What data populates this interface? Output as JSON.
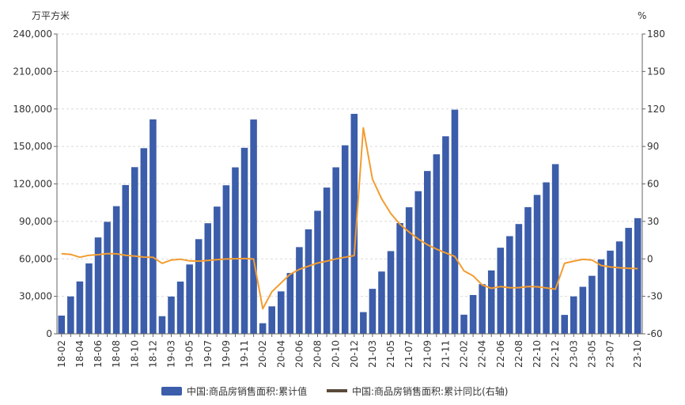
{
  "chart_data": {
    "type": "bar",
    "left_unit": "万平方米",
    "right_unit": "%",
    "ylim_left": [
      0,
      240000
    ],
    "ylim_right": [
      -60,
      180
    ],
    "left_ticks": [
      "0",
      "30,000",
      "60,000",
      "90,000",
      "120,000",
      "150,000",
      "180,000",
      "210,000",
      "240,000"
    ],
    "right_ticks": [
      "-60",
      "-30",
      "0",
      "30",
      "60",
      "90",
      "120",
      "150",
      "180"
    ],
    "grid": true,
    "legend_position": "bottom",
    "categories": [
      "18-02",
      "18-03",
      "18-04",
      "18-05",
      "18-06",
      "18-07",
      "18-08",
      "18-09",
      "18-10",
      "18-11",
      "18-12",
      "19-02",
      "19-03",
      "19-04",
      "19-05",
      "19-06",
      "19-07",
      "19-08",
      "19-09",
      "19-10",
      "19-11",
      "19-12",
      "20-02",
      "20-03",
      "20-04",
      "20-05",
      "20-06",
      "20-07",
      "20-08",
      "20-09",
      "20-10",
      "20-11",
      "20-12",
      "21-02",
      "21-03",
      "21-04",
      "21-05",
      "21-06",
      "21-07",
      "21-08",
      "21-09",
      "21-10",
      "21-11",
      "21-12",
      "22-02",
      "22-03",
      "22-04",
      "22-05",
      "22-06",
      "22-07",
      "22-08",
      "22-09",
      "22-10",
      "22-11",
      "22-12",
      "23-02",
      "23-03",
      "23-04",
      "23-05",
      "23-06",
      "23-07",
      "23-08",
      "23-09",
      "23-10"
    ],
    "x_tick_labels": [
      "18-02",
      "18-04",
      "18-06",
      "18-08",
      "18-10",
      "18-12",
      "19-03",
      "19-05",
      "19-07",
      "19-09",
      "19-11",
      "20-02",
      "20-04",
      "20-06",
      "20-08",
      "20-10",
      "20-12",
      "21-03",
      "21-05",
      "21-07",
      "21-09",
      "21-11",
      "22-02",
      "22-04",
      "22-06",
      "22-08",
      "22-10",
      "22-12",
      "23-03",
      "23-05",
      "23-07",
      "23-10"
    ],
    "series": [
      {
        "name": "中国:商品房销售面积:累计值",
        "type": "bar",
        "axis": "left",
        "color": "#3b5daa",
        "values": [
          14577,
          29904,
          41924,
          56340,
          77143,
          89631,
          102185,
          119099,
          133433,
          148604,
          171654,
          14103,
          29829,
          41802,
          55518,
          75786,
          88531,
          101849,
          118909,
          133251,
          148905,
          171558,
          8475,
          21978,
          33973,
          48703,
          69404,
          83641,
          98486,
          117073,
          133294,
          150919,
          176086,
          17363,
          36007,
          49863,
          66203,
          88635,
          101298,
          114193,
          130332,
          143698,
          158125,
          179433,
          15303,
          31046,
          39768,
          50738,
          68923,
          78178,
          87890,
          101422,
          111179,
          121250,
          135837,
          15133,
          29946,
          37636,
          46440,
          59515,
          66563,
          73949,
          84806,
          92579
        ]
      },
      {
        "name": "中国:商品房销售面积:累计同比(右轴)",
        "type": "line",
        "axis": "right",
        "color": "#f39c2f",
        "values": [
          4.1,
          3.6,
          1.3,
          2.9,
          3.3,
          4.2,
          4.0,
          2.9,
          2.2,
          1.4,
          1.3,
          -3.6,
          -0.9,
          -0.3,
          -1.6,
          -1.8,
          -1.3,
          -0.6,
          -0.1,
          0.1,
          0.2,
          -0.1,
          -39.9,
          -26.3,
          -19.3,
          -12.3,
          -8.4,
          -5.8,
          -3.3,
          -1.8,
          0.0,
          1.3,
          2.6,
          104.9,
          63.8,
          48.1,
          36.3,
          27.7,
          21.5,
          15.9,
          11.3,
          7.8,
          4.8,
          1.9,
          -9.6,
          -13.6,
          -20.9,
          -23.6,
          -22.2,
          -23.1,
          -23.0,
          -22.2,
          -22.3,
          -23.3,
          -24.3,
          -3.6,
          -1.8,
          -0.4,
          -0.9,
          -5.3,
          -6.5,
          -7.1,
          -7.5,
          -7.8
        ]
      }
    ]
  }
}
